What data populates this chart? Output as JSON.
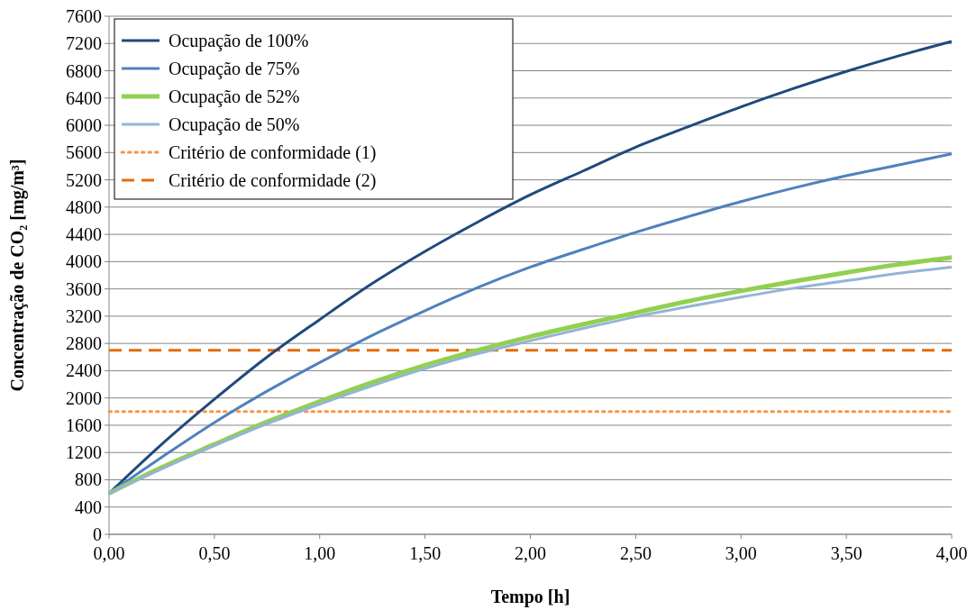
{
  "chart_data": {
    "type": "line",
    "xlabel": "Tempo [h]",
    "ylabel": "Concentração de CO₂ [mg/m³]",
    "x": [
      0,
      0.25,
      0.5,
      0.75,
      1,
      1.25,
      1.5,
      1.75,
      2,
      2.25,
      2.5,
      2.75,
      3,
      3.25,
      3.5,
      3.75,
      4
    ],
    "xlim": [
      0,
      4
    ],
    "xticks": [
      {
        "value": 0,
        "label": "0,00"
      },
      {
        "value": 0.5,
        "label": "0,50"
      },
      {
        "value": 1,
        "label": "1,00"
      },
      {
        "value": 1.5,
        "label": "1,50"
      },
      {
        "value": 2,
        "label": "2,00"
      },
      {
        "value": 2.5,
        "label": "2,50"
      },
      {
        "value": 3,
        "label": "3,00"
      },
      {
        "value": 3.5,
        "label": "3,50"
      },
      {
        "value": 4,
        "label": "4,00"
      }
    ],
    "ylim": [
      0,
      7600
    ],
    "yticks": [
      0,
      400,
      800,
      1200,
      1600,
      2000,
      2400,
      2800,
      3200,
      3600,
      4000,
      4400,
      4800,
      5200,
      5600,
      6000,
      6400,
      6800,
      7200,
      7600
    ],
    "grid": "y",
    "legend": "top left",
    "marker": "none",
    "series": [
      {
        "name": "Ocupação de 100%",
        "color": "#1f497d",
        "values": [
          600,
          1320,
          1980,
          2600,
          3150,
          3680,
          4150,
          4580,
          4980,
          5330,
          5680,
          5980,
          6270,
          6540,
          6790,
          7020,
          7230
        ]
      },
      {
        "name": "Ocupação de 75%",
        "color": "#4f81bd",
        "values": [
          600,
          1130,
          1640,
          2100,
          2520,
          2920,
          3280,
          3620,
          3920,
          4180,
          4430,
          4660,
          4880,
          5080,
          5260,
          5420,
          5580
        ]
      },
      {
        "name": "Ocupação de 52%",
        "color": "#92d050",
        "values": [
          600,
          980,
          1320,
          1650,
          1950,
          2230,
          2480,
          2700,
          2900,
          3080,
          3250,
          3420,
          3570,
          3710,
          3840,
          3960,
          4060
        ]
      },
      {
        "name": "Ocupação de 50%",
        "color": "#95b3d7",
        "values": [
          600,
          960,
          1300,
          1620,
          1910,
          2180,
          2430,
          2650,
          2840,
          3020,
          3190,
          3340,
          3480,
          3610,
          3720,
          3830,
          3920
        ]
      }
    ],
    "ref_lines": [
      {
        "axis": "y",
        "value": 1800,
        "label": "Critério de conformidade (1)",
        "color": "#f79646",
        "line_style": "dotted"
      },
      {
        "axis": "y",
        "value": 2700,
        "label": "Critério de conformidade (2)",
        "color": "#e46c0a",
        "line_style": "dashed"
      }
    ]
  }
}
